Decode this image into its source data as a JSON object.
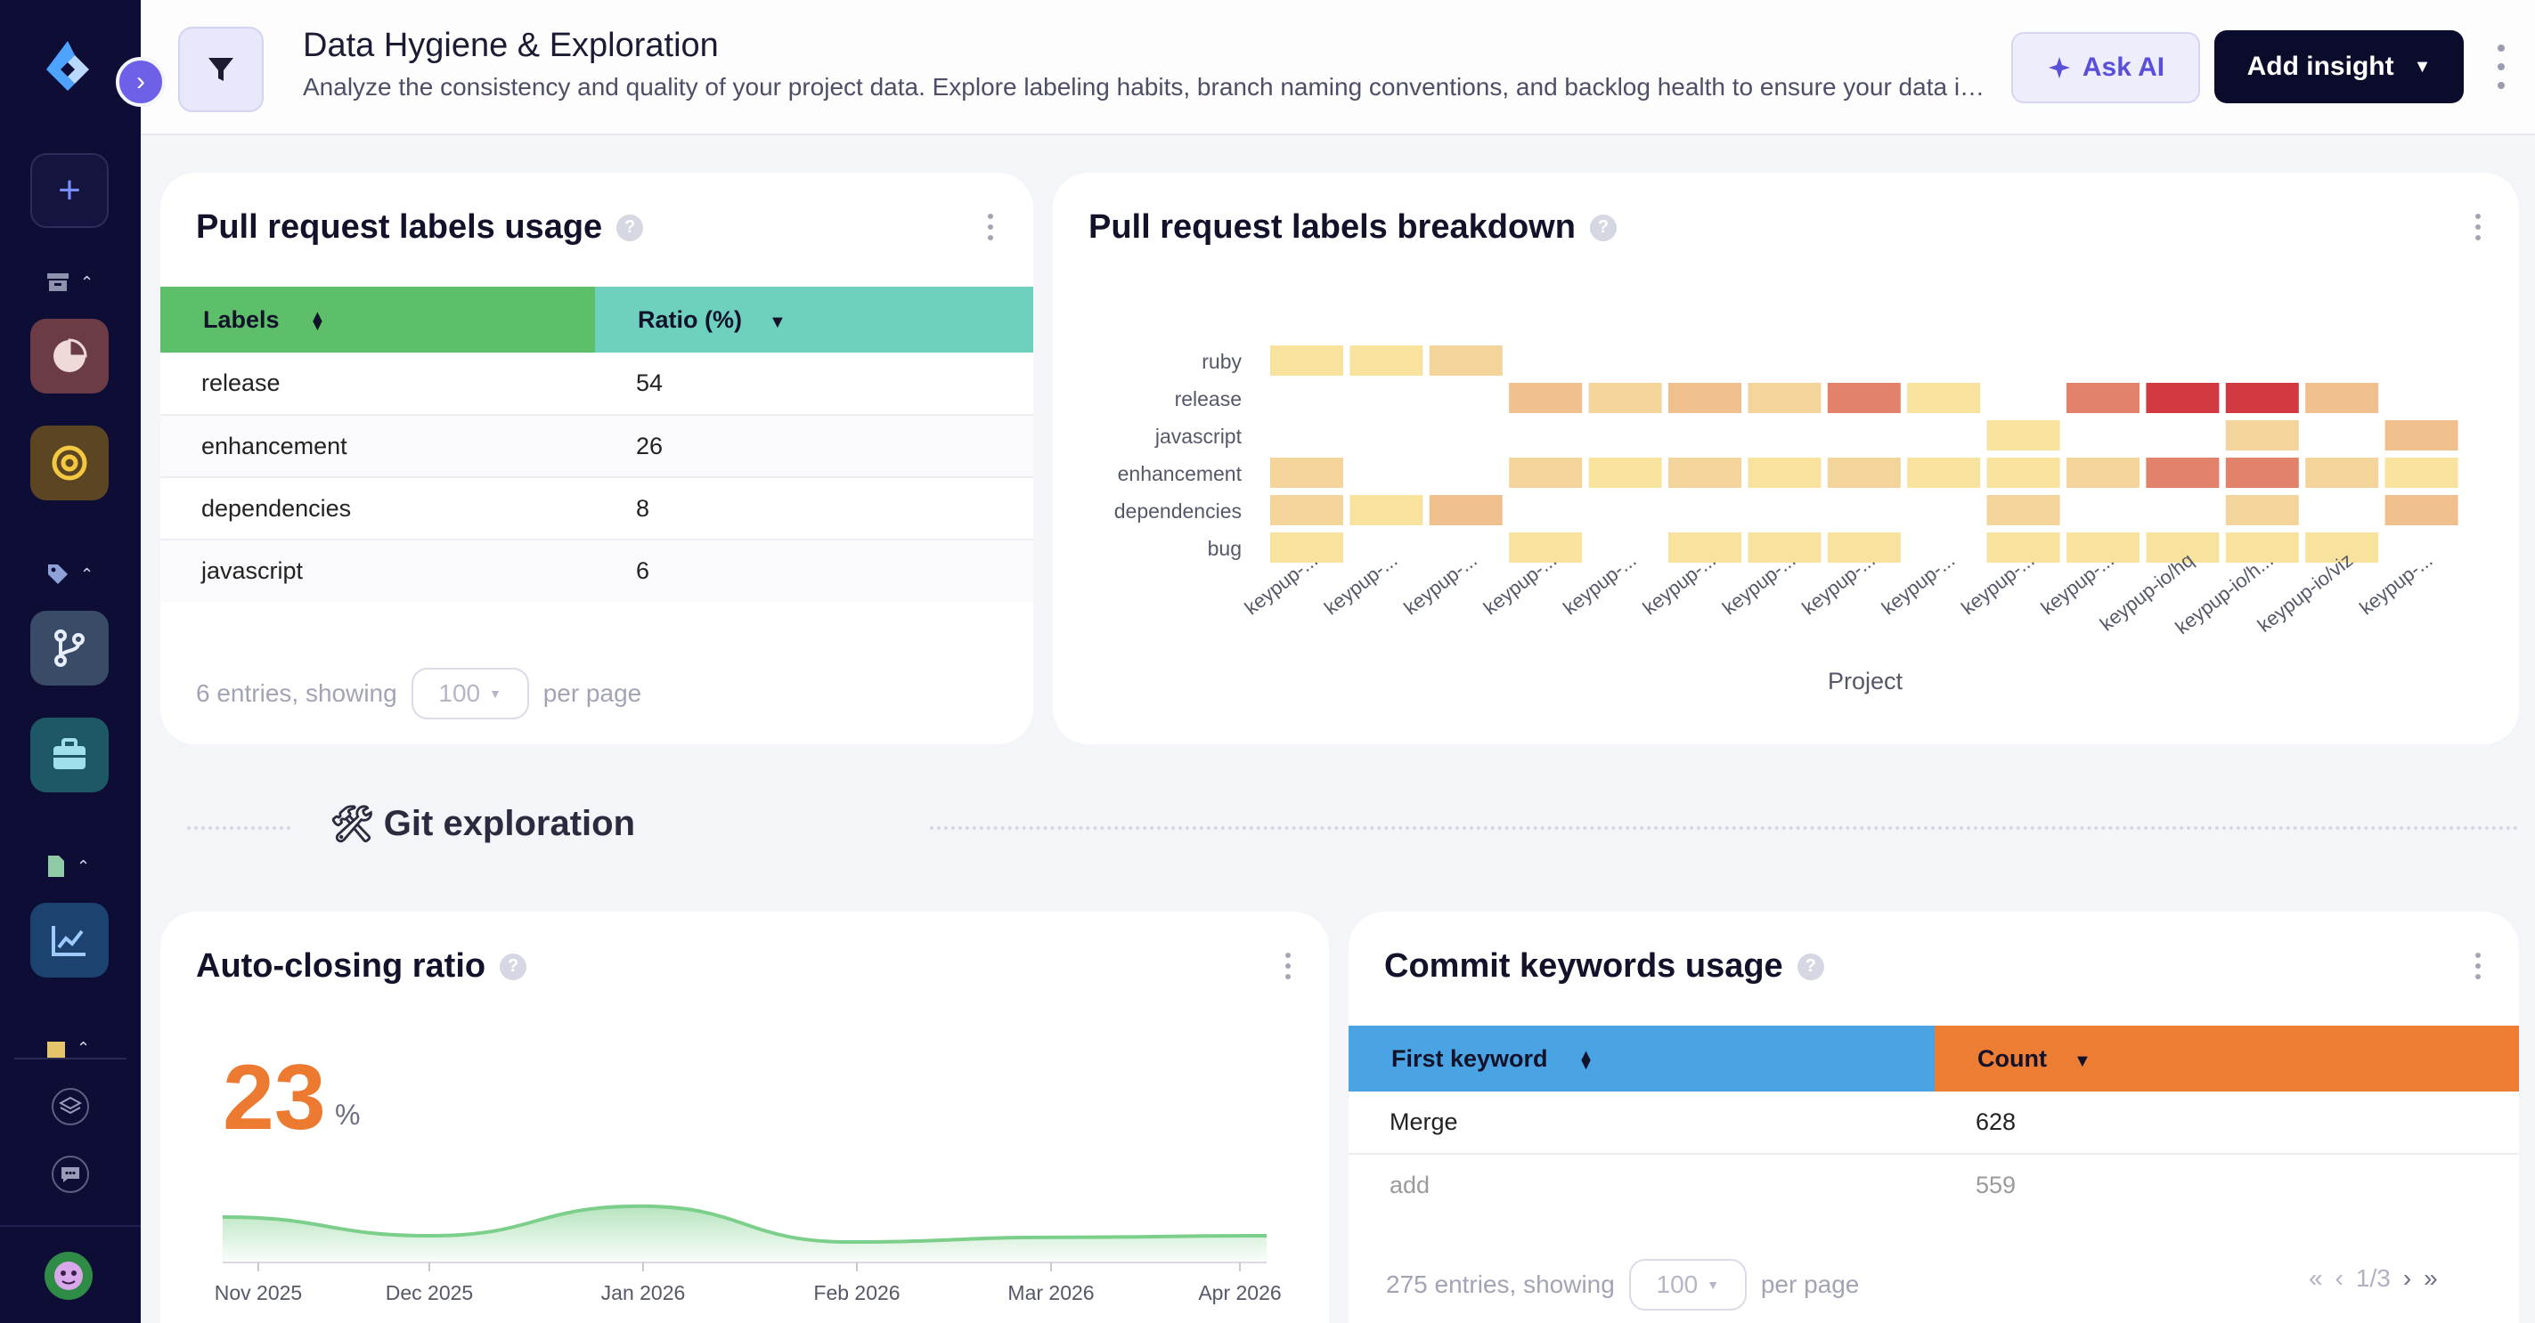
{
  "header": {
    "title": "Data Hygiene & Exploration",
    "description": "Analyze the consistency and quality of your project data. Explore labeling habits, branch naming conventions, and backlog health to ensure your data is reliable.",
    "ask_ai_label": "Ask AI",
    "add_insight_label": "Add insight"
  },
  "sidebar": {
    "icons": [
      "app-logo",
      "plus-icon",
      "archive-icon",
      "pie-chart-icon",
      "target-icon",
      "tag-icon",
      "git-branch-icon",
      "briefcase-icon",
      "document-icon",
      "trend-chart-icon",
      "layers-icon",
      "chat-icon",
      "user-avatar"
    ]
  },
  "pr_labels_usage": {
    "title": "Pull request labels usage",
    "columns": [
      "Labels",
      "Ratio (%)"
    ],
    "rows": [
      {
        "label": "release",
        "ratio": "54"
      },
      {
        "label": "enhancement",
        "ratio": "26"
      },
      {
        "label": "dependencies",
        "ratio": "8"
      },
      {
        "label": "javascript",
        "ratio": "6"
      }
    ],
    "footer_prefix": "6 entries, showing",
    "per_page_value": "100",
    "footer_suffix": "per page",
    "header_colors": [
      "#5dbf6a",
      "#6dd1bd"
    ]
  },
  "pr_labels_breakdown": {
    "title": "Pull request labels breakdown",
    "xlabel": "Project",
    "rows": [
      "ruby",
      "release",
      "javascript",
      "enhancement",
      "dependencies",
      "bug"
    ],
    "columns": [
      "keypup-...",
      "keypup-...",
      "keypup-...",
      "keypup-...",
      "keypup-...",
      "keypup-...",
      "keypup-...",
      "keypup-...",
      "keypup-...",
      "keypup-...",
      "keypup-...",
      "keypup-io/hq",
      "keypup-io/h...",
      "keypup-io/viz",
      "keypup-..."
    ],
    "cells": [
      [
        1,
        1,
        2,
        0,
        0,
        0,
        0,
        0,
        0,
        0,
        0,
        0,
        0,
        0,
        0
      ],
      [
        0,
        0,
        0,
        3,
        2,
        3,
        2,
        4,
        1,
        0,
        4,
        5,
        5,
        3,
        0
      ],
      [
        0,
        0,
        0,
        0,
        0,
        0,
        0,
        0,
        0,
        1,
        0,
        0,
        2,
        0,
        3
      ],
      [
        2,
        0,
        0,
        2,
        1,
        2,
        1,
        2,
        1,
        1,
        2,
        4,
        4,
        2,
        1
      ],
      [
        2,
        1,
        3,
        0,
        0,
        0,
        0,
        0,
        0,
        2,
        0,
        0,
        2,
        0,
        3
      ],
      [
        1,
        0,
        0,
        1,
        0,
        1,
        1,
        1,
        0,
        1,
        1,
        1,
        1,
        1,
        0
      ]
    ],
    "palette": [
      "transparent",
      "#f7e39e",
      "#f3d49a",
      "#efc08e",
      "#e2826a",
      "#d23a42"
    ]
  },
  "section": {
    "title": "Git exploration",
    "emoji": "🛠"
  },
  "auto_closing": {
    "title": "Auto-closing ratio",
    "value": "23",
    "unit": "%",
    "x_labels": [
      "Nov 2025",
      "Dec 2025",
      "Jan 2026",
      "Feb 2026",
      "Mar 2026",
      "Apr 2026"
    ],
    "series": [
      28,
      16,
      35,
      12,
      15,
      16
    ],
    "color": "#7ccf8a"
  },
  "commit_keywords": {
    "title": "Commit keywords usage",
    "columns": [
      "First keyword",
      "Count"
    ],
    "rows": [
      {
        "keyword": "Merge",
        "count": "628"
      },
      {
        "keyword": "add",
        "count": "559"
      }
    ],
    "footer_prefix": "275 entries, showing",
    "per_page_value": "100",
    "footer_suffix": "per page",
    "page_indicator": "1/3",
    "header_colors": [
      "#4aa3e2",
      "#ec7d33"
    ]
  }
}
